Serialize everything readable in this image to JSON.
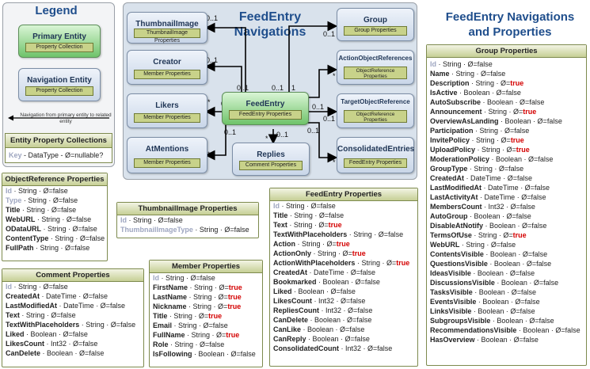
{
  "legend": {
    "title": "Legend",
    "primary_name": "Primary Entity",
    "primary_prop": "Property Collection",
    "nav_name": "Navigation Entity",
    "nav_prop": "Property Collection",
    "arrow_text": "Navigation from primary entity to related entity",
    "epc_title": "Entity Property Collections",
    "epc_key": "Key",
    "epc_rest": " - DataType - Ø=nullable?"
  },
  "diagram": {
    "title": "FeedEntry Navigations",
    "primary": {
      "name": "FeedEntry",
      "prop": "FeedEntry Properties"
    },
    "entities": [
      {
        "name": "ThumbnailImage",
        "prop": "ThumbnailImage Properties"
      },
      {
        "name": "Creator",
        "prop": "Member Properties"
      },
      {
        "name": "Likers",
        "prop": "Member Properties"
      },
      {
        "name": "AtMentions",
        "prop": "Member Properties"
      },
      {
        "name": "Replies",
        "prop": "Comment Properties"
      },
      {
        "name": "Group",
        "prop": "Group Properties"
      },
      {
        "name": "ActionObjectReferences",
        "prop": "ObjectReference Properties"
      },
      {
        "name": "TargetObjectReference",
        "prop": "ObjectReference Properties"
      },
      {
        "name": "ConsolidatedEntries",
        "prop": "FeedEntry Properties"
      }
    ],
    "mult": {
      "zero_one": "0..1",
      "many": "*",
      "one": "1"
    }
  },
  "right_title": "FeedEntry Navigations and Properties",
  "cards": {
    "objref": {
      "title": "ObjectReference Properties",
      "rows": [
        {
          "k": true,
          "n": "Id",
          "t": "String",
          "null": "false"
        },
        {
          "k": true,
          "n": "Type",
          "t": "String",
          "null": "false"
        },
        {
          "k": false,
          "n": "Title",
          "t": "String",
          "null": "false"
        },
        {
          "k": false,
          "n": "WebURL",
          "t": "String",
          "null": "false"
        },
        {
          "k": false,
          "n": "ODataURL",
          "t": "String",
          "null": "false"
        },
        {
          "k": false,
          "n": "ContentType",
          "t": "String",
          "null": "false"
        },
        {
          "k": false,
          "n": "FullPath",
          "t": "String",
          "null": "false"
        }
      ]
    },
    "thumb": {
      "title": "ThumbnailImage Properties",
      "rows": [
        {
          "k": true,
          "n": "Id",
          "t": "String",
          "null": "false"
        },
        {
          "k": true,
          "n": "ThumbnailImageType",
          "t": "String",
          "null": "false"
        }
      ]
    },
    "comment": {
      "title": "Comment Properties",
      "rows": [
        {
          "k": true,
          "n": "Id",
          "t": "String",
          "null": "false"
        },
        {
          "k": false,
          "n": "CreatedAt",
          "t": "DateTime",
          "null": "false"
        },
        {
          "k": false,
          "n": "LastModifiedAt",
          "t": "DateTime",
          "null": "false"
        },
        {
          "k": false,
          "n": "Text",
          "t": "String",
          "null": "false"
        },
        {
          "k": false,
          "n": "TextWithPlaceholders",
          "t": "String",
          "null": "false"
        },
        {
          "k": false,
          "n": "Liked",
          "t": "Boolean",
          "null": "false"
        },
        {
          "k": false,
          "n": "LikesCount",
          "t": "Int32",
          "null": "false"
        },
        {
          "k": false,
          "n": "CanDelete",
          "t": "Boolean",
          "null": "false"
        }
      ]
    },
    "member": {
      "title": "Member Properties",
      "rows": [
        {
          "k": true,
          "n": "Id",
          "t": "String",
          "null": "false"
        },
        {
          "k": false,
          "n": "FirstName",
          "t": "String",
          "null": "true"
        },
        {
          "k": false,
          "n": "LastName",
          "t": "String",
          "null": "true"
        },
        {
          "k": false,
          "n": "Nickname",
          "t": "String",
          "null": "true"
        },
        {
          "k": false,
          "n": "Title",
          "t": "String",
          "null": "true"
        },
        {
          "k": false,
          "n": "Email",
          "t": "String",
          "null": "false"
        },
        {
          "k": false,
          "n": "FullName",
          "t": "String",
          "null": "true"
        },
        {
          "k": false,
          "n": "Role",
          "t": "String",
          "null": "false"
        },
        {
          "k": false,
          "n": "IsFollowing",
          "t": "Boolean",
          "null": "false"
        }
      ]
    },
    "feedentry": {
      "title": "FeedEntry Properties",
      "rows": [
        {
          "k": true,
          "n": "Id",
          "t": "String",
          "null": "false"
        },
        {
          "k": false,
          "n": "Title",
          "t": "String",
          "null": "false"
        },
        {
          "k": false,
          "n": "Text",
          "t": "String",
          "null": "true"
        },
        {
          "k": false,
          "n": "TextWithPlaceholders",
          "t": "String",
          "null": "false"
        },
        {
          "k": false,
          "n": "Action",
          "t": "String",
          "null": "true"
        },
        {
          "k": false,
          "n": "ActionOnly",
          "t": "String",
          "null": "true"
        },
        {
          "k": false,
          "n": "ActionWithPlaceholders",
          "t": "String",
          "null": "true"
        },
        {
          "k": false,
          "n": "CreatedAt",
          "t": "DateTime",
          "null": "false"
        },
        {
          "k": false,
          "n": "Bookmarked",
          "t": "Boolean",
          "null": "false"
        },
        {
          "k": false,
          "n": "Liked",
          "t": "Boolean",
          "null": "false"
        },
        {
          "k": false,
          "n": "LikesCount",
          "t": "Int32",
          "null": "false"
        },
        {
          "k": false,
          "n": "RepliesCount",
          "t": "Int32",
          "null": "false"
        },
        {
          "k": false,
          "n": "CanDelete",
          "t": "Boolean",
          "null": "false"
        },
        {
          "k": false,
          "n": "CanLike",
          "t": "Boolean",
          "null": "false"
        },
        {
          "k": false,
          "n": "CanReply",
          "t": "Boolean",
          "null": "false"
        },
        {
          "k": false,
          "n": "ConsolidatedCount",
          "t": "Int32",
          "null": "false"
        }
      ]
    },
    "group": {
      "title": "Group Properties",
      "rows": [
        {
          "k": true,
          "n": "Id",
          "t": "String",
          "null": "false"
        },
        {
          "k": false,
          "n": "Name",
          "t": "String",
          "null": "false"
        },
        {
          "k": false,
          "n": "Description",
          "t": "String",
          "null": "true"
        },
        {
          "k": false,
          "n": "IsActive",
          "t": "Boolean",
          "null": "false"
        },
        {
          "k": false,
          "n": "AutoSubscribe",
          "t": "Boolean",
          "null": "false"
        },
        {
          "k": false,
          "n": "Announcement",
          "t": "String",
          "null": "true"
        },
        {
          "k": false,
          "n": "OverviewAsLanding",
          "t": "Boolean",
          "null": "false"
        },
        {
          "k": false,
          "n": "Participation",
          "t": "String",
          "null": "false"
        },
        {
          "k": false,
          "n": "InvitePolicy",
          "t": "String",
          "null": "true"
        },
        {
          "k": false,
          "n": "UploadPolicy",
          "t": "String",
          "null": "true"
        },
        {
          "k": false,
          "n": "ModerationPolicy",
          "t": "Boolean",
          "null": "false"
        },
        {
          "k": false,
          "n": "GroupType",
          "t": "String",
          "null": "false"
        },
        {
          "k": false,
          "n": "CreatedAt",
          "t": "DateTime",
          "null": "false"
        },
        {
          "k": false,
          "n": "LastModifiedAt",
          "t": "DateTime",
          "null": "false"
        },
        {
          "k": false,
          "n": "LastActivityAt",
          "t": "DateTime",
          "null": "false"
        },
        {
          "k": false,
          "n": "MembersCount",
          "t": "Int32",
          "null": "false"
        },
        {
          "k": false,
          "n": "AutoGroup",
          "t": "Boolean",
          "null": "false"
        },
        {
          "k": false,
          "n": "DisableAtNotify",
          "t": "Boolean",
          "null": "false"
        },
        {
          "k": false,
          "n": "TermsOfUse",
          "t": "String",
          "null": "true"
        },
        {
          "k": false,
          "n": "WebURL",
          "t": "String",
          "null": "false"
        },
        {
          "k": false,
          "n": "ContentsVisible",
          "t": "Boolean",
          "null": "false"
        },
        {
          "k": false,
          "n": "QuestionsVisible",
          "t": "Boolean",
          "null": "false"
        },
        {
          "k": false,
          "n": "IdeasVisible",
          "t": "Boolean",
          "null": "false"
        },
        {
          "k": false,
          "n": "DiscussionsVisible",
          "t": "Boolean",
          "null": "false"
        },
        {
          "k": false,
          "n": "TasksVisible",
          "t": "Boolean",
          "null": "false"
        },
        {
          "k": false,
          "n": "EventsVisible",
          "t": "Boolean",
          "null": "false"
        },
        {
          "k": false,
          "n": "LinksVisible",
          "t": "Boolean",
          "null": "false"
        },
        {
          "k": false,
          "n": "SubgroupsVisible",
          "t": "Boolean",
          "null": "false"
        },
        {
          "k": false,
          "n": "RecommendationsVisible",
          "t": "Boolean",
          "null": "false"
        },
        {
          "k": false,
          "n": "HasOverview",
          "t": "Boolean",
          "null": "false"
        }
      ]
    }
  }
}
